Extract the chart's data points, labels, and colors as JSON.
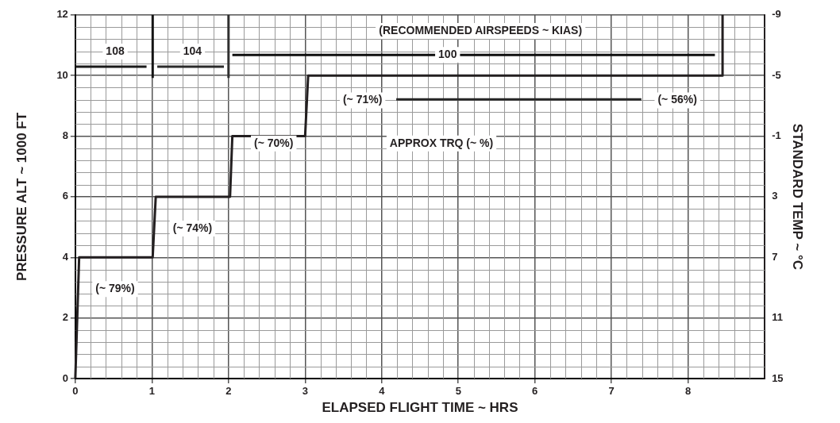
{
  "chart_data": {
    "type": "line",
    "xlabel": "ELAPSED FLIGHT TIME ~ HRS",
    "ylabel": "PRESSURE ALT ~ 1000 FT",
    "y2label": "STANDARD TEMP ~ °C",
    "xlim": [
      0,
      9
    ],
    "xticks": [
      0,
      1,
      2,
      3,
      4,
      5,
      6,
      7,
      8
    ],
    "ylim": [
      0,
      12
    ],
    "yticks": [
      0,
      2,
      4,
      6,
      8,
      10,
      12
    ],
    "y2lim": [
      15,
      -9
    ],
    "y2ticks": [
      15,
      11,
      7,
      3,
      -1,
      -5,
      -9
    ],
    "grid": true,
    "legend": false,
    "marker": "none",
    "line_style": "solid",
    "series": [
      {
        "color": "#231f20",
        "x": [
          0,
          0.05,
          1.01,
          1.05,
          2.02,
          2.05,
          3.0,
          3.04,
          8.45,
          8.45
        ],
        "values": [
          0,
          4,
          4,
          6,
          6,
          8,
          8,
          10,
          10,
          12
        ]
      },
      {
        "color": "#1a1a1a",
        "x": [
          0,
          0.93
        ],
        "values": [
          10.29,
          10.29
        ]
      },
      {
        "color": "#2a2a2a",
        "x": [
          1.07,
          1.94
        ],
        "values": [
          10.29,
          10.29
        ]
      },
      {
        "color": "#141414",
        "x": [
          1.01,
          1.01
        ],
        "values": [
          9.92,
          12
        ]
      },
      {
        "color": "#303030",
        "x": [
          2.0,
          2.0
        ],
        "values": [
          9.92,
          12
        ]
      },
      {
        "color": "#0f0f0f",
        "x": [
          2.05,
          8.35
        ],
        "values": [
          10.68,
          10.68
        ]
      },
      {
        "color": "#262626",
        "x": [
          4.19,
          7.39
        ],
        "values": [
          9.21,
          9.21
        ]
      }
    ],
    "annotations": [
      "(~ 79%)",
      "(~ 74%)",
      "(~ 70%)",
      "(~ 71%)",
      "(~ 56%)",
      "APPROX TRQ (~ %)",
      "(RECOMMENDED AIRSPEEDS ~ KIAS)",
      "108",
      "104",
      "100"
    ]
  }
}
